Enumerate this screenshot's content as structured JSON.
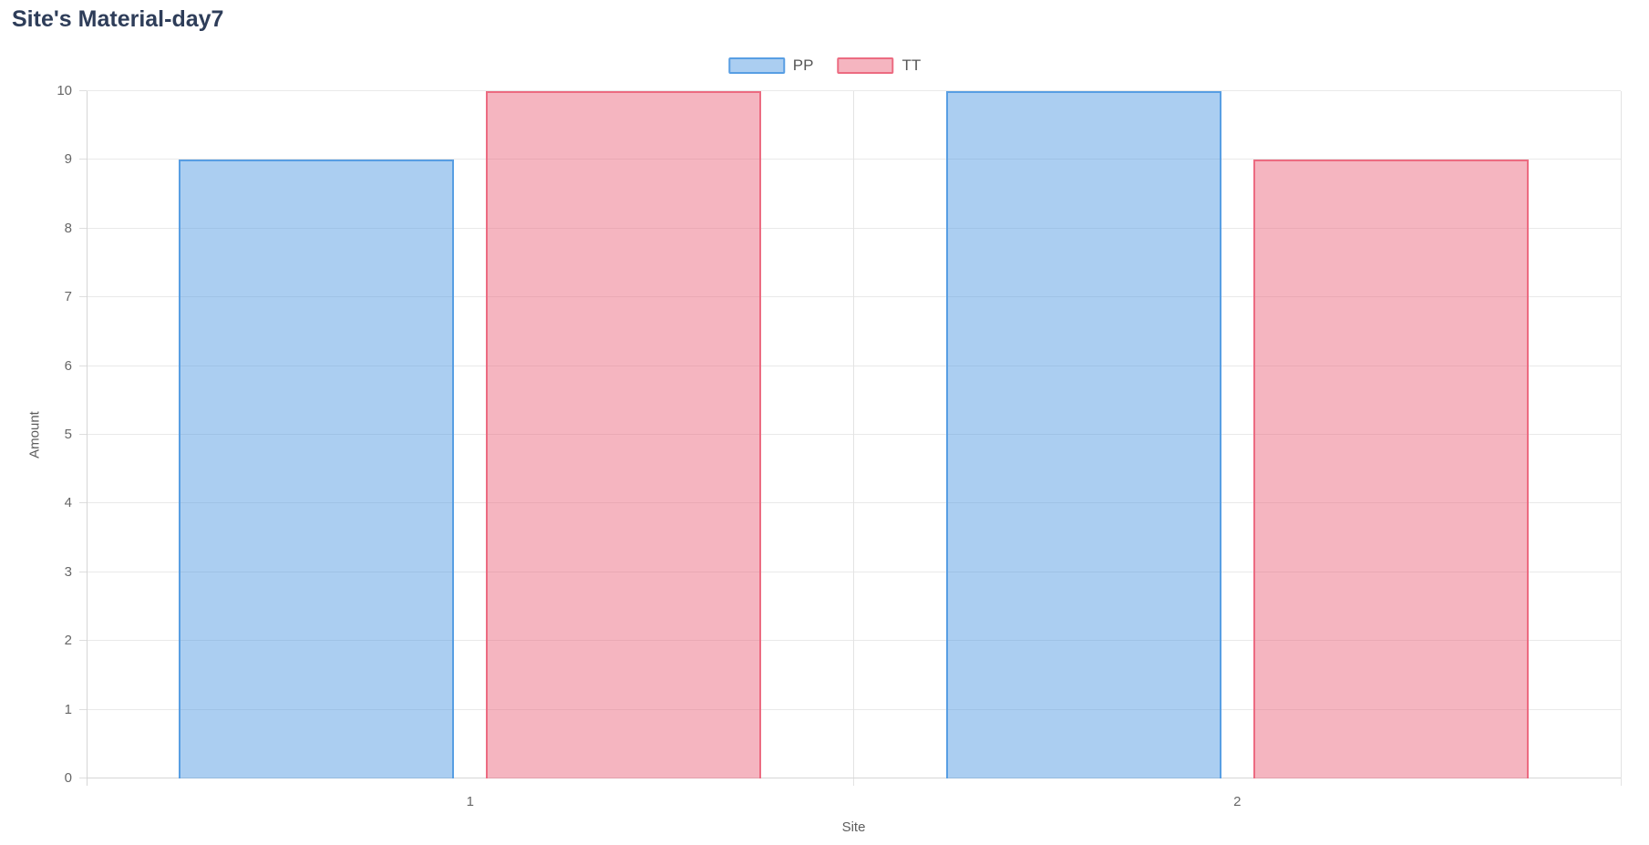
{
  "title": "Site's Material-day7",
  "legend": {
    "items": [
      {
        "label": "PP"
      },
      {
        "label": "TT"
      }
    ]
  },
  "colors": {
    "title_text": "#2e3d59",
    "legend_text": "#555555",
    "tick_text": "#666666",
    "axis_title_text": "#5d5d5d",
    "gridline": "#e9e9e9",
    "axis_line": "#d6d6d6",
    "pp_border": "#589ee3",
    "pp_fill": "rgba(88,158,227,0.5)",
    "tt_border": "#ec6b81",
    "tt_fill": "rgba(236,107,129,0.5)"
  },
  "chart_data": {
    "type": "bar",
    "title": "Site's Material-day7",
    "categories": [
      "1",
      "2"
    ],
    "series": [
      {
        "name": "PP",
        "values": [
          9,
          10
        ],
        "border": "#589ee3",
        "fill": "rgba(88,158,227,0.5)"
      },
      {
        "name": "TT",
        "values": [
          10,
          9
        ],
        "border": "#ec6b81",
        "fill": "rgba(236,107,129,0.5)"
      }
    ],
    "xlabel": "Site",
    "ylabel": "Amount",
    "ylim": [
      0,
      10
    ],
    "ytick_step": 1,
    "yticks": [
      0,
      1,
      2,
      3,
      4,
      5,
      6,
      7,
      8,
      9,
      10
    ],
    "grid": true,
    "legend_position": "top-center"
  }
}
